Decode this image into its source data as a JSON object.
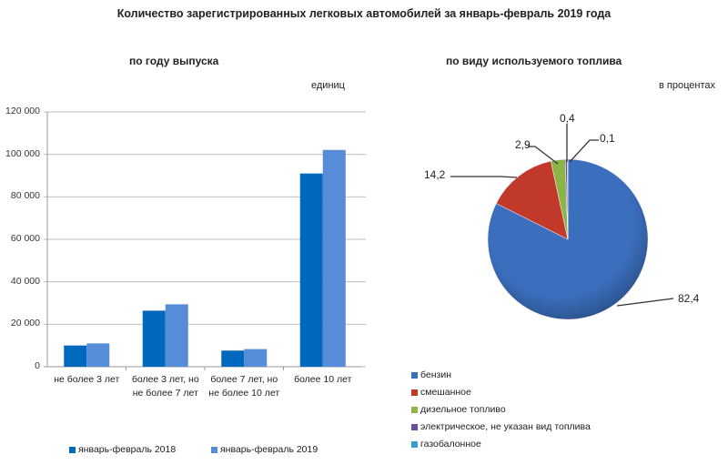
{
  "title": "Количество зарегистрированных  легковых автомобилей  за январь-февраль  2019 года",
  "colors": {
    "series_2018": "#0069be",
    "series_2019": "#568cd8",
    "benzin": "#3b6fbe",
    "mixed": "#c0392b",
    "diesel": "#8db446",
    "electric": "#6a4fa0",
    "gas": "#3a9dd0",
    "gridline": "#bfbfbf"
  },
  "left": {
    "subtitle": "по году выпуска",
    "unit": "единиц"
  },
  "right": {
    "subtitle": "по виду используемого  топлива",
    "unit": "в процентах"
  },
  "chart_data": [
    {
      "type": "bar",
      "title": "по году выпуска",
      "ylabel": "единиц",
      "categories": [
        "не более 3 лет",
        "более 3 лет, но не более 7 лет",
        "более 7 лет, но не более 10 лет",
        "более 10 лет"
      ],
      "category_lines": [
        [
          "не более 3 лет"
        ],
        [
          "более 3 лет, но",
          "не более 7 лет"
        ],
        [
          "более 7 лет, но",
          "не более 10 лет"
        ],
        [
          "более 10 лет"
        ]
      ],
      "series": [
        {
          "name": "январь-февраль 2018",
          "values": [
            10000,
            26400,
            7600,
            91000
          ]
        },
        {
          "name": "январь-февраль 2019",
          "values": [
            11000,
            29400,
            8300,
            102100
          ]
        }
      ],
      "yticks": [
        "0",
        "20 000",
        "40 000",
        "60 000",
        "80 000",
        "100 000",
        "120 000"
      ],
      "ylim": [
        0,
        120000
      ],
      "grid": true,
      "legend_position": "bottom"
    },
    {
      "type": "pie",
      "title": "по виду используемого  топлива",
      "unit": "в процентах",
      "labels": [
        "бензин",
        "смешанное",
        "дизельное топливо",
        "электрическое, не указан вид топлива",
        "газобалонное"
      ],
      "values": [
        82.4,
        14.2,
        2.9,
        0.4,
        0.1
      ],
      "value_labels": [
        "82,4",
        "14,2",
        "2,9",
        "0,4",
        "0,1"
      ],
      "legend_position": "bottom-left"
    }
  ]
}
